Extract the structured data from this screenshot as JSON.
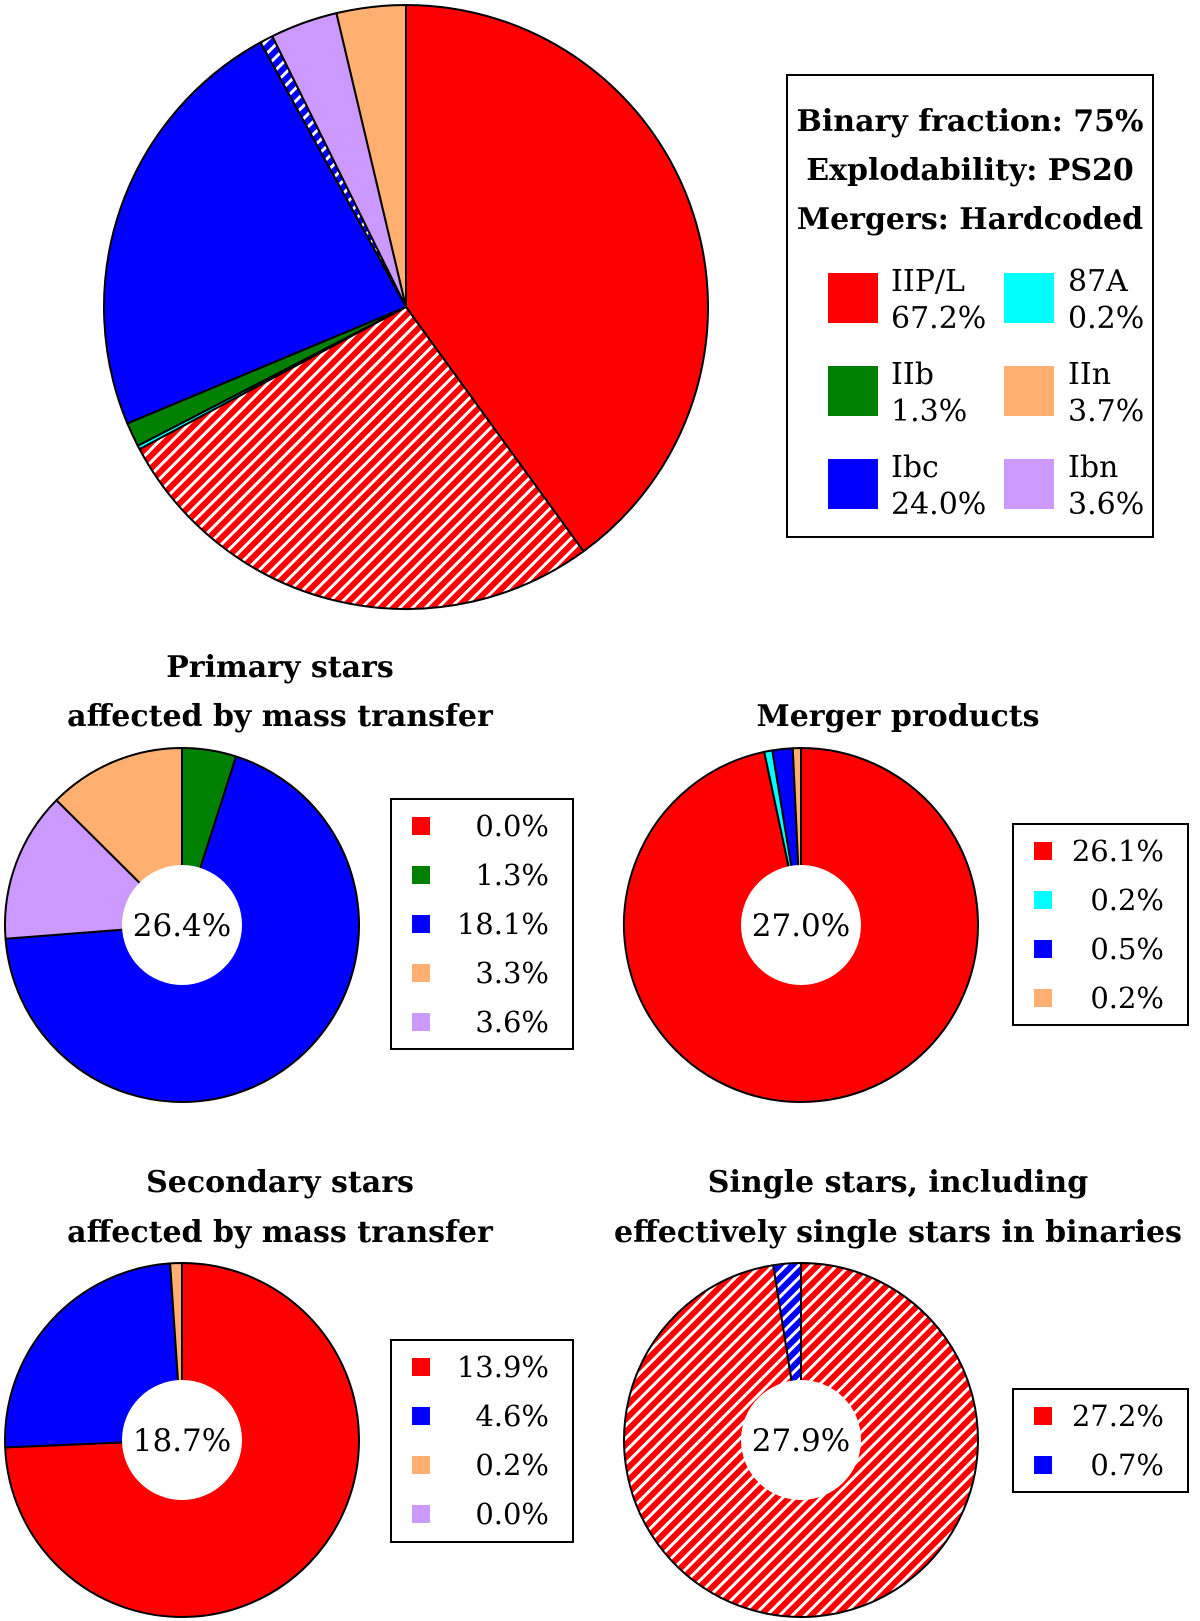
{
  "colors": {
    "IIP_L": "#ff0000",
    "87A": "#00ffff",
    "IIb": "#008000",
    "IIn": "#ffb070",
    "Ibc": "#0000ff",
    "Ibn": "#cc99ff"
  },
  "chart_data": [
    {
      "type": "pie",
      "id": "overall",
      "header_lines": [
        "Binary fraction: 75%",
        "Explodability: PS20",
        "Mergers: Hardcoded"
      ],
      "legend": [
        {
          "label": "IIP/L",
          "value": "67.2%",
          "color": "#ff0000"
        },
        {
          "label": "87A",
          "value": "0.2%",
          "color": "#00ffff"
        },
        {
          "label": "IIb",
          "value": "1.3%",
          "color": "#008000"
        },
        {
          "label": "IIn",
          "value": "3.7%",
          "color": "#ffb070"
        },
        {
          "label": "Ibc",
          "value": "24.0%",
          "color": "#0000ff"
        },
        {
          "label": "Ibn",
          "value": "3.6%",
          "color": "#cc99ff"
        }
      ],
      "slices": [
        {
          "type": "IIP/L",
          "value": 40.0,
          "hatched": false,
          "color": "#ff0000"
        },
        {
          "type": "IIP/L",
          "value": 27.2,
          "hatched": true,
          "color": "#ff0000"
        },
        {
          "type": "87A",
          "value": 0.2,
          "hatched": false,
          "color": "#00ffff"
        },
        {
          "type": "IIb",
          "value": 1.3,
          "hatched": false,
          "color": "#008000"
        },
        {
          "type": "Ibc",
          "value": 23.3,
          "hatched": false,
          "color": "#0000ff"
        },
        {
          "type": "Ibc",
          "value": 0.7,
          "hatched": true,
          "color": "#0000ff"
        },
        {
          "type": "Ibn",
          "value": 3.6,
          "hatched": false,
          "color": "#cc99ff"
        },
        {
          "type": "IIn",
          "value": 3.7,
          "hatched": false,
          "color": "#ffb070"
        }
      ]
    },
    {
      "type": "pie",
      "id": "primary",
      "title_lines": [
        "Primary stars",
        "affected by mass transfer"
      ],
      "center_label": "26.4%",
      "slices": [
        {
          "value": 0.0,
          "label": "0.0%",
          "color": "#ff0000"
        },
        {
          "value": 1.3,
          "label": "1.3%",
          "color": "#008000"
        },
        {
          "value": 18.1,
          "label": "18.1%",
          "color": "#0000ff"
        },
        {
          "value": 3.6,
          "label": "3.6%",
          "color": "#cc99ff"
        },
        {
          "value": 3.3,
          "label": "3.3%",
          "color": "#ffb070"
        }
      ],
      "legend": [
        {
          "label": "0.0%",
          "color": "#ff0000"
        },
        {
          "label": "1.3%",
          "color": "#008000"
        },
        {
          "label": "18.1%",
          "color": "#0000ff"
        },
        {
          "label": "3.3%",
          "color": "#ffb070"
        },
        {
          "label": "3.6%",
          "color": "#cc99ff"
        }
      ]
    },
    {
      "type": "pie",
      "id": "merger",
      "title_lines": [
        "Merger products"
      ],
      "center_label": "27.0%",
      "slices": [
        {
          "value": 26.1,
          "label": "26.1%",
          "color": "#ff0000"
        },
        {
          "value": 0.2,
          "label": "0.2%",
          "color": "#00ffff"
        },
        {
          "value": 0.5,
          "label": "0.5%",
          "color": "#0000ff"
        },
        {
          "value": 0.2,
          "label": "0.2%",
          "color": "#ffb070"
        }
      ],
      "legend": [
        {
          "label": "26.1%",
          "color": "#ff0000"
        },
        {
          "label": "0.2%",
          "color": "#00ffff"
        },
        {
          "label": "0.5%",
          "color": "#0000ff"
        },
        {
          "label": "0.2%",
          "color": "#ffb070"
        }
      ]
    },
    {
      "type": "pie",
      "id": "secondary",
      "title_lines": [
        "Secondary stars",
        "affected by mass transfer"
      ],
      "center_label": "18.7%",
      "slices": [
        {
          "value": 13.9,
          "label": "13.9%",
          "color": "#ff0000"
        },
        {
          "value": 4.6,
          "label": "4.6%",
          "color": "#0000ff"
        },
        {
          "value": 0.2,
          "label": "0.2%",
          "color": "#ffb070"
        },
        {
          "value": 0.0,
          "label": "0.0%",
          "color": "#cc99ff"
        }
      ],
      "legend": [
        {
          "label": "13.9%",
          "color": "#ff0000"
        },
        {
          "label": "4.6%",
          "color": "#0000ff"
        },
        {
          "label": "0.2%",
          "color": "#ffb070"
        },
        {
          "label": "0.0%",
          "color": "#cc99ff"
        }
      ]
    },
    {
      "type": "pie",
      "id": "single",
      "title_lines": [
        "Single stars, including",
        "effectively single stars in binaries"
      ],
      "center_label": "27.9%",
      "slices": [
        {
          "value": 27.2,
          "label": "27.2%",
          "color": "#ff0000",
          "hatched": true
        },
        {
          "value": 0.7,
          "label": "0.7%",
          "color": "#0000ff",
          "hatched": true
        }
      ],
      "legend": [
        {
          "label": "27.2%",
          "color": "#ff0000"
        },
        {
          "label": "0.7%",
          "color": "#0000ff"
        }
      ]
    }
  ]
}
